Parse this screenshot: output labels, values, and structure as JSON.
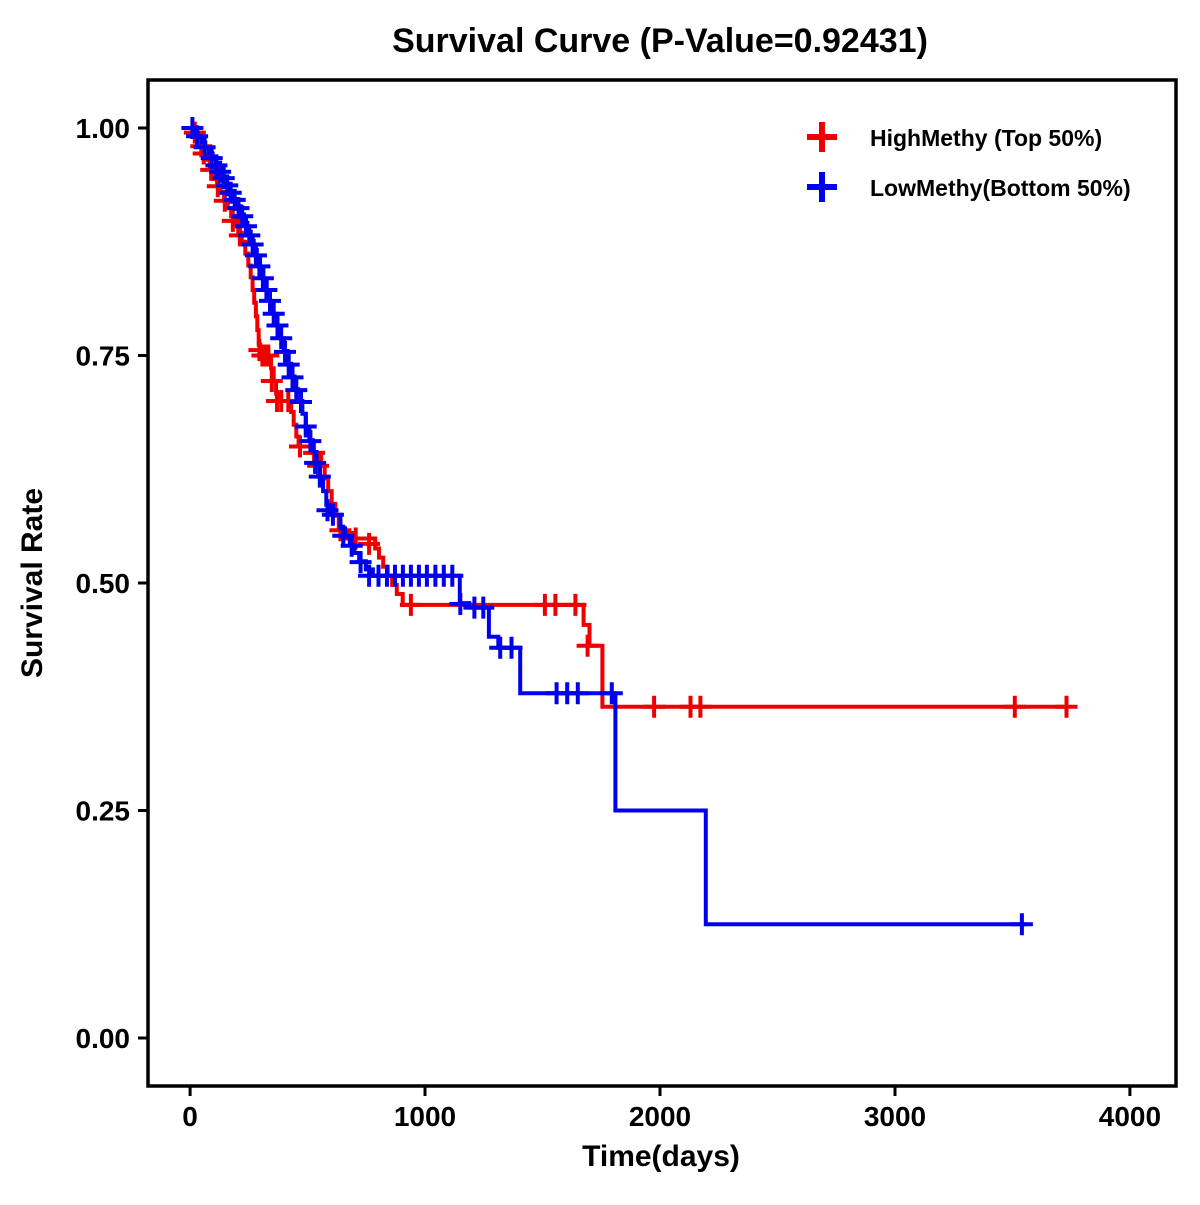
{
  "page": {
    "background": "#ffffff"
  },
  "chart_data": {
    "type": "line",
    "subtype": "kaplan-meier-step",
    "title": "Survival Curve (P-Value=0.92431)",
    "p_value": 0.92431,
    "xlabel": "Time(days)",
    "ylabel": "Survival Rate",
    "xlim": [
      -179,
      4196
    ],
    "ylim": [
      -0.0527,
      1.0528
    ],
    "grid": false,
    "legend_position": "upper right",
    "xticks": [
      {
        "value": 0,
        "label": "0"
      },
      {
        "value": 1000,
        "label": "1000"
      },
      {
        "value": 2000,
        "label": "2000"
      },
      {
        "value": 3000,
        "label": "3000"
      },
      {
        "value": 4000,
        "label": "4000"
      }
    ],
    "yticks": [
      {
        "value": 0.0,
        "label": "0.00"
      },
      {
        "value": 0.25,
        "label": "0.25"
      },
      {
        "value": 0.5,
        "label": "0.50"
      },
      {
        "value": 0.75,
        "label": "0.75"
      },
      {
        "value": 1.0,
        "label": "1.00"
      }
    ],
    "legend": [
      {
        "label": "HighMethy (Top 50%)",
        "color": "#ee0000"
      },
      {
        "label": "LowMethy(Bottom 50%)",
        "color": "#0000ee"
      }
    ],
    "series": [
      {
        "id": "highmethy",
        "name": "HighMethy (Top 50%)",
        "color": "#ee0000",
        "steps": [
          [
            0,
            1.0
          ],
          [
            15,
            0.995
          ],
          [
            25,
            0.99
          ],
          [
            40,
            0.984
          ],
          [
            50,
            0.978
          ],
          [
            60,
            0.972
          ],
          [
            75,
            0.965
          ],
          [
            85,
            0.958
          ],
          [
            95,
            0.951
          ],
          [
            105,
            0.944
          ],
          [
            115,
            0.937
          ],
          [
            130,
            0.929
          ],
          [
            145,
            0.921
          ],
          [
            160,
            0.912
          ],
          [
            175,
            0.903
          ],
          [
            190,
            0.894
          ],
          [
            205,
            0.885
          ],
          [
            220,
            0.875
          ],
          [
            235,
            0.862
          ],
          [
            248,
            0.849
          ],
          [
            258,
            0.836
          ],
          [
            266,
            0.822
          ],
          [
            273,
            0.808
          ],
          [
            280,
            0.793
          ],
          [
            286,
            0.778
          ],
          [
            292,
            0.762
          ],
          [
            298,
            0.75
          ],
          [
            345,
            0.736
          ],
          [
            356,
            0.722
          ],
          [
            366,
            0.708
          ],
          [
            376,
            0.7
          ],
          [
            430,
            0.688
          ],
          [
            441,
            0.674
          ],
          [
            452,
            0.661
          ],
          [
            462,
            0.65
          ],
          [
            520,
            0.643
          ],
          [
            558,
            0.629
          ],
          [
            573,
            0.615
          ],
          [
            588,
            0.601
          ],
          [
            603,
            0.587
          ],
          [
            618,
            0.574
          ],
          [
            633,
            0.561
          ],
          [
            650,
            0.555
          ],
          [
            700,
            0.549
          ],
          [
            788,
            0.538
          ],
          [
            804,
            0.528
          ],
          [
            822,
            0.518
          ],
          [
            841,
            0.508
          ],
          [
            860,
            0.498
          ],
          [
            880,
            0.488
          ],
          [
            905,
            0.476
          ],
          [
            1675,
            0.454
          ],
          [
            1700,
            0.431
          ],
          [
            1755,
            0.364
          ],
          [
            3735,
            0.364
          ]
        ],
        "censors": [
          [
            20,
            0.995
          ],
          [
            48,
            0.98
          ],
          [
            58,
            0.972
          ],
          [
            90,
            0.954
          ],
          [
            118,
            0.936
          ],
          [
            148,
            0.92
          ],
          [
            182,
            0.898
          ],
          [
            212,
            0.882
          ],
          [
            295,
            0.756
          ],
          [
            308,
            0.75
          ],
          [
            320,
            0.75
          ],
          [
            333,
            0.75
          ],
          [
            348,
            0.722
          ],
          [
            370,
            0.7
          ],
          [
            388,
            0.7
          ],
          [
            418,
            0.7
          ],
          [
            468,
            0.65
          ],
          [
            528,
            0.643
          ],
          [
            545,
            0.629
          ],
          [
            640,
            0.558
          ],
          [
            705,
            0.549
          ],
          [
            762,
            0.543
          ],
          [
            940,
            0.476
          ],
          [
            1510,
            0.476
          ],
          [
            1555,
            0.476
          ],
          [
            1640,
            0.476
          ],
          [
            1692,
            0.431
          ],
          [
            1975,
            0.364
          ],
          [
            2130,
            0.364
          ],
          [
            2172,
            0.364
          ],
          [
            3510,
            0.364
          ],
          [
            3730,
            0.364
          ]
        ]
      },
      {
        "id": "lowmethy",
        "name": "LowMethy(Bottom 50%)",
        "color": "#0000ee",
        "steps": [
          [
            0,
            1.0
          ],
          [
            18,
            0.995
          ],
          [
            33,
            0.99
          ],
          [
            50,
            0.984
          ],
          [
            65,
            0.978
          ],
          [
            80,
            0.972
          ],
          [
            95,
            0.966
          ],
          [
            110,
            0.959
          ],
          [
            125,
            0.952
          ],
          [
            140,
            0.945
          ],
          [
            155,
            0.938
          ],
          [
            170,
            0.93
          ],
          [
            185,
            0.922
          ],
          [
            200,
            0.914
          ],
          [
            215,
            0.905
          ],
          [
            230,
            0.896
          ],
          [
            244,
            0.886
          ],
          [
            258,
            0.876
          ],
          [
            271,
            0.866
          ],
          [
            284,
            0.856
          ],
          [
            298,
            0.845
          ],
          [
            312,
            0.833
          ],
          [
            326,
            0.821
          ],
          [
            340,
            0.809
          ],
          [
            355,
            0.796
          ],
          [
            370,
            0.783
          ],
          [
            385,
            0.769
          ],
          [
            400,
            0.755
          ],
          [
            415,
            0.741
          ],
          [
            430,
            0.727
          ],
          [
            445,
            0.713
          ],
          [
            460,
            0.7
          ],
          [
            478,
            0.686
          ],
          [
            493,
            0.671
          ],
          [
            508,
            0.657
          ],
          [
            523,
            0.644
          ],
          [
            538,
            0.63
          ],
          [
            553,
            0.616
          ],
          [
            566,
            0.601
          ],
          [
            580,
            0.586
          ],
          [
            598,
            0.575
          ],
          [
            640,
            0.56
          ],
          [
            660,
            0.551
          ],
          [
            680,
            0.542
          ],
          [
            700,
            0.533
          ],
          [
            720,
            0.524
          ],
          [
            748,
            0.515
          ],
          [
            778,
            0.508
          ],
          [
            1148,
            0.478
          ],
          [
            1188,
            0.473
          ],
          [
            1272,
            0.441
          ],
          [
            1312,
            0.429
          ],
          [
            1405,
            0.379
          ],
          [
            1810,
            0.25
          ],
          [
            2195,
            0.125
          ],
          [
            3560,
            0.125
          ]
        ],
        "censors": [
          [
            10,
            1.0
          ],
          [
            30,
            0.991
          ],
          [
            62,
            0.979
          ],
          [
            92,
            0.967
          ],
          [
            112,
            0.959
          ],
          [
            128,
            0.952
          ],
          [
            143,
            0.945
          ],
          [
            158,
            0.937
          ],
          [
            173,
            0.929
          ],
          [
            190,
            0.921
          ],
          [
            206,
            0.912
          ],
          [
            222,
            0.903
          ],
          [
            238,
            0.892
          ],
          [
            252,
            0.882
          ],
          [
            266,
            0.872
          ],
          [
            280,
            0.86
          ],
          [
            295,
            0.848
          ],
          [
            310,
            0.835
          ],
          [
            325,
            0.822
          ],
          [
            340,
            0.81
          ],
          [
            356,
            0.796
          ],
          [
            372,
            0.783
          ],
          [
            388,
            0.769
          ],
          [
            404,
            0.754
          ],
          [
            420,
            0.74
          ],
          [
            436,
            0.726
          ],
          [
            452,
            0.712
          ],
          [
            472,
            0.699
          ],
          [
            492,
            0.672
          ],
          [
            512,
            0.656
          ],
          [
            532,
            0.632
          ],
          [
            552,
            0.617
          ],
          [
            585,
            0.58
          ],
          [
            608,
            0.575
          ],
          [
            652,
            0.552
          ],
          [
            688,
            0.541
          ],
          [
            726,
            0.523
          ],
          [
            762,
            0.508
          ],
          [
            802,
            0.508
          ],
          [
            838,
            0.508
          ],
          [
            872,
            0.508
          ],
          [
            906,
            0.508
          ],
          [
            940,
            0.508
          ],
          [
            974,
            0.508
          ],
          [
            1008,
            0.508
          ],
          [
            1044,
            0.508
          ],
          [
            1080,
            0.508
          ],
          [
            1116,
            0.508
          ],
          [
            1150,
            0.477
          ],
          [
            1210,
            0.473
          ],
          [
            1248,
            0.473
          ],
          [
            1320,
            0.429
          ],
          [
            1368,
            0.429
          ],
          [
            1560,
            0.379
          ],
          [
            1605,
            0.379
          ],
          [
            1650,
            0.379
          ],
          [
            1795,
            0.379
          ],
          [
            3540,
            0.125
          ]
        ]
      }
    ]
  }
}
